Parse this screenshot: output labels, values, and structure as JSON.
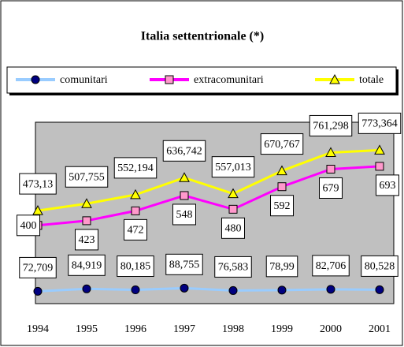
{
  "chart_data": {
    "type": "line",
    "title": "Italia settentrionale (*)",
    "categories": [
      "1994",
      "1995",
      "1996",
      "1997",
      "1998",
      "1999",
      "2000",
      "2001"
    ],
    "ylim": [
      0,
      900
    ],
    "series": [
      {
        "name": "comunitari",
        "color": "#99ccff",
        "marker": "circle",
        "marker_color": "#000080",
        "values": [
          72.709,
          84.919,
          80.185,
          88.755,
          76.583,
          78.99,
          82.706,
          80.528
        ],
        "value_labels": [
          "72,709",
          "84,919",
          "80,185",
          "88,755",
          "76,583",
          "78,99",
          "82,706",
          "80,528"
        ]
      },
      {
        "name": "extracomunitari",
        "color": "#ff00ff",
        "marker": "square",
        "marker_color": "#ff99cc",
        "values": [
          400,
          423,
          472,
          548,
          480,
          592,
          679,
          693
        ]
      },
      {
        "name": "totale",
        "color": "#ffff00",
        "marker": "triangle",
        "marker_color": "#ffff00",
        "values": [
          473.13,
          507.755,
          552.194,
          636.742,
          557.013,
          670.767,
          761.298,
          773.364
        ],
        "value_labels": [
          "473,13",
          "507,755",
          "552,194",
          "636,742",
          "557,013",
          "670,767",
          "761,298",
          "773,364"
        ]
      }
    ],
    "legend": "top"
  }
}
